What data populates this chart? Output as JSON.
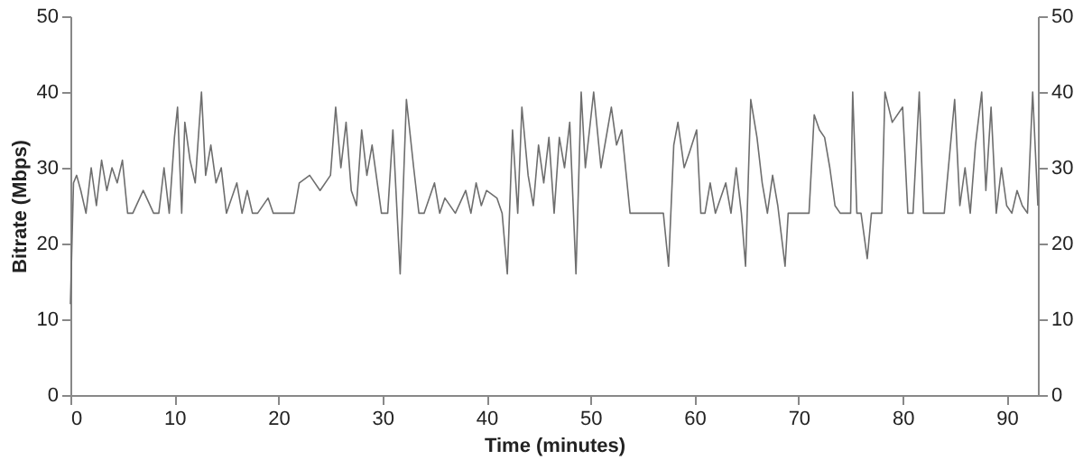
{
  "chart_data": {
    "type": "line",
    "xlabel": "Time (minutes)",
    "ylabel": "Bitrate (Mbps)",
    "xlim": [
      0,
      93
    ],
    "xticks": [
      0,
      10,
      20,
      30,
      40,
      50,
      60,
      70,
      80,
      90
    ],
    "ylim": [
      0,
      50
    ],
    "yticks": [
      0,
      10,
      20,
      30,
      40,
      50
    ],
    "y2lim": [
      0,
      50
    ],
    "y2ticks": [
      0,
      10,
      20,
      30,
      40,
      50
    ],
    "grid": false,
    "marker": "none",
    "line_style": "solid",
    "series": [
      {
        "color": "#6e6e6e",
        "x": [
          0,
          0.3,
          0.6,
          1,
          1.5,
          2,
          2.5,
          3,
          3.5,
          4,
          4.5,
          5,
          5.5,
          6,
          7,
          8,
          8.5,
          9,
          9.5,
          10,
          10.3,
          10.7,
          11,
          11.5,
          12,
          12.6,
          13,
          13.5,
          14,
          14.5,
          15,
          16,
          16.5,
          17,
          17.5,
          18,
          19,
          19.5,
          21,
          21.5,
          22,
          23,
          24,
          25,
          25.5,
          26,
          26.5,
          27,
          27.5,
          28,
          28.5,
          29,
          29.9,
          30.5,
          31,
          31.7,
          32.3,
          33,
          33.5,
          34,
          35,
          35.5,
          36,
          37,
          38,
          38.5,
          39,
          39.5,
          40,
          41,
          41.5,
          42,
          42.5,
          43,
          43.4,
          44,
          44.5,
          45,
          45.5,
          46,
          46.5,
          47,
          47.5,
          48,
          48.6,
          49.1,
          49.5,
          50.3,
          51,
          52,
          52.5,
          53,
          53.8,
          55,
          56,
          57,
          57.5,
          58,
          58.4,
          59,
          59.5,
          60.2,
          60.6,
          61,
          61.5,
          62,
          63,
          63.5,
          64,
          64.5,
          64.9,
          65.4,
          66,
          66.5,
          67,
          67.5,
          68,
          68.7,
          69,
          70,
          71,
          71.5,
          72,
          72.5,
          73,
          73.5,
          74,
          75,
          75.2,
          75.6,
          76,
          76.6,
          77,
          78,
          78.3,
          79,
          80,
          80.5,
          81,
          81.6,
          82,
          83,
          84,
          85,
          85.5,
          86,
          86.5,
          87,
          87.6,
          88,
          88.5,
          89,
          89.5,
          90,
          90.5,
          91,
          91.5,
          92,
          92.5,
          93
        ],
        "values": [
          12,
          28,
          29,
          27,
          24,
          30,
          25,
          31,
          27,
          30,
          28,
          31,
          24,
          24,
          27,
          24,
          24,
          30,
          24,
          34,
          38,
          24,
          36,
          31,
          28,
          40,
          29,
          33,
          28,
          30,
          24,
          28,
          24,
          27,
          24,
          24,
          26,
          24,
          24,
          24,
          28,
          29,
          27,
          29,
          38,
          30,
          36,
          27,
          25,
          35,
          29,
          33,
          24,
          24,
          35,
          16,
          39,
          30,
          24,
          24,
          28,
          24,
          26,
          24,
          27,
          24,
          28,
          25,
          27,
          26,
          24,
          16,
          35,
          24,
          38,
          29,
          25,
          33,
          28,
          34,
          24,
          34,
          30,
          36,
          16,
          40,
          30,
          40,
          30,
          38,
          33,
          35,
          24,
          24,
          24,
          24,
          17,
          33,
          36,
          30,
          32,
          35,
          24,
          24,
          28,
          24,
          28,
          24,
          30,
          24,
          17,
          39,
          34,
          28,
          24,
          29,
          25,
          17,
          24,
          24,
          24,
          37,
          35,
          34,
          30,
          25,
          24,
          24,
          40,
          24,
          24,
          18,
          24,
          24,
          40,
          36,
          38,
          24,
          24,
          40,
          24,
          24,
          24,
          39,
          25,
          30,
          24,
          33,
          40,
          27,
          38,
          24,
          30,
          25,
          24,
          27,
          25,
          24,
          40,
          25
        ]
      }
    ]
  }
}
